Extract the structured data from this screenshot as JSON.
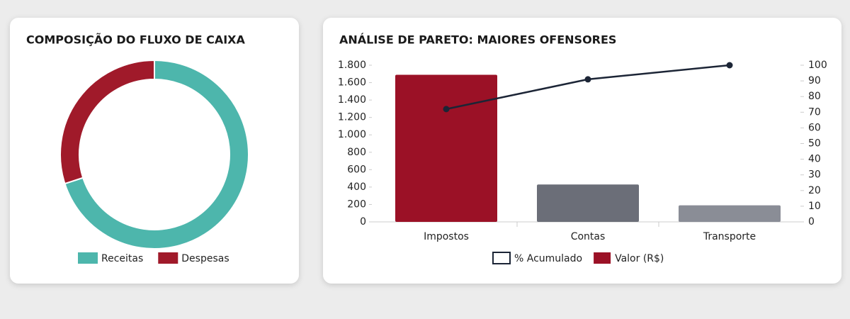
{
  "chart_data": [
    {
      "type": "donut",
      "title": "COMPOSIÇÃO DO FLUXO DE CAIXA",
      "categories": [
        "Receitas",
        "Despesas"
      ],
      "values": [
        70,
        30
      ],
      "colors": [
        "#4db6ac",
        "#a01a2a"
      ]
    },
    {
      "type": "bar",
      "title": "ANÁLISE DE PARETO: MAIORES OFENSORES",
      "categories": [
        "Impostos",
        "Contas",
        "Transporte"
      ],
      "series": [
        {
          "name": "% Acumulado",
          "type": "line",
          "axis": "y2",
          "color": "#1c2536",
          "values": [
            72,
            91,
            100
          ]
        },
        {
          "name": "Valor (R$)",
          "type": "bar",
          "color": "#9b1126",
          "colors": [
            "#9b1126",
            "#6b6e78",
            "#8a8d96"
          ],
          "values": [
            1690,
            430,
            190
          ]
        }
      ],
      "ylim": [
        0,
        1800
      ],
      "yticks": [
        0,
        200,
        400,
        600,
        800,
        {
          "value": 1000,
          "label": "1.000"
        },
        {
          "value": 1200,
          "label": "1.200"
        },
        {
          "value": 1400,
          "label": "1.400"
        },
        {
          "value": 1600,
          "label": "1.600"
        },
        {
          "value": 1800,
          "label": "1.800"
        }
      ],
      "y2lim": [
        0,
        100
      ],
      "y2ticks": [
        0,
        10,
        20,
        30,
        40,
        50,
        60,
        70,
        80,
        90,
        100
      ]
    }
  ]
}
